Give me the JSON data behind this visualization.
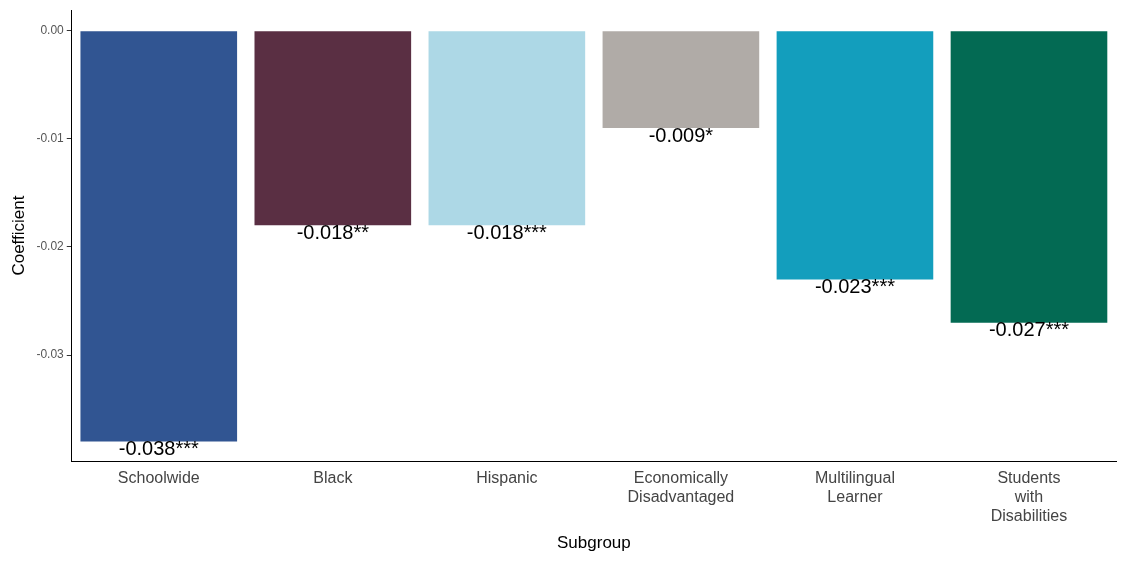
{
  "chart_data": {
    "type": "bar",
    "xlabel": "Subgroup",
    "ylabel": "Coefficient",
    "categories": [
      "Schoolwide",
      "Black",
      "Hispanic",
      "Economically Disadvantaged",
      "Multilingual Learner",
      "Students with Disabilities"
    ],
    "values": [
      -0.038,
      -0.018,
      -0.018,
      -0.009,
      -0.023,
      -0.027
    ],
    "colors": [
      "#315592",
      "#5a2f43",
      "#add8e6",
      "#b0aba7",
      "#139ebd",
      "#036a53"
    ],
    "value_labels": [
      "-0.038***",
      "-0.018**",
      "-0.018***",
      "-0.009*",
      "-0.023***",
      "-0.027***"
    ],
    "ylim": [
      -0.0398,
      0.0019
    ],
    "yticks": [
      {
        "value": 0,
        "label": "0.00"
      },
      {
        "value": -0.01,
        "label": "-0.01"
      },
      {
        "value": -0.02,
        "label": "-0.02"
      },
      {
        "value": -0.03,
        "label": "-0.03"
      }
    ],
    "grid": false,
    "legend": false
  }
}
